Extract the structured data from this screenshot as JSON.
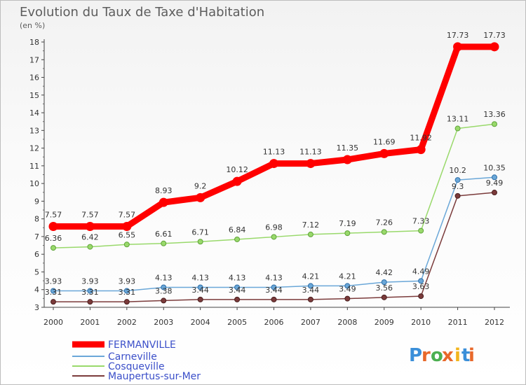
{
  "chart_data": {
    "type": "line",
    "title": "Evolution du Taux de Taxe d'Habitation",
    "ylabel": "(en %)",
    "xlabel": "",
    "x": [
      "2000",
      "2001",
      "2002",
      "2003",
      "2004",
      "2005",
      "2006",
      "2007",
      "2008",
      "2009",
      "2010",
      "2011",
      "2012"
    ],
    "ylim": [
      3,
      18
    ],
    "yticks": [
      3,
      4,
      5,
      6,
      7,
      8,
      9,
      10,
      11,
      12,
      13,
      14,
      15,
      16,
      17,
      18
    ],
    "grid": false,
    "legend_position": "bottom-left",
    "series": [
      {
        "name": "FERMANVILLE",
        "color": "#ff0000",
        "values": [
          7.57,
          7.57,
          7.57,
          8.93,
          9.2,
          10.12,
          11.13,
          11.13,
          11.35,
          11.69,
          11.92,
          17.73,
          17.73
        ],
        "labels": [
          "7.57",
          "7.57",
          "7.57",
          "8.93",
          "9.2",
          "10.12",
          "11.13",
          "11.13",
          "11.35",
          "11.69",
          "11.92",
          "17.73",
          "17.73"
        ]
      },
      {
        "name": "Carneville",
        "color": "#6aa7d8",
        "values": [
          3.93,
          3.93,
          3.93,
          4.13,
          4.13,
          4.13,
          4.13,
          4.21,
          4.21,
          4.42,
          4.49,
          10.2,
          10.35
        ],
        "labels": [
          "3.93",
          "3.93",
          "3.93",
          "4.13",
          "4.13",
          "4.13",
          "4.13",
          "4.21",
          "4.21",
          "4.42",
          "4.49",
          "10.2",
          "10.35"
        ]
      },
      {
        "name": "Cosqueville",
        "color": "#99d96b",
        "values": [
          6.36,
          6.42,
          6.55,
          6.61,
          6.71,
          6.84,
          6.98,
          7.12,
          7.19,
          7.26,
          7.33,
          13.11,
          13.36
        ],
        "labels": [
          "6.36",
          "6.42",
          "6.55",
          "6.61",
          "6.71",
          "6.84",
          "6.98",
          "7.12",
          "7.19",
          "7.26",
          "7.33",
          "13.11",
          "13.36"
        ]
      },
      {
        "name": "Maupertus-sur-Mer",
        "color": "#7b3b3b",
        "values": [
          3.31,
          3.31,
          3.31,
          3.38,
          3.44,
          3.44,
          3.44,
          3.44,
          3.49,
          3.56,
          3.63,
          9.3,
          9.49
        ],
        "labels": [
          "3.31",
          "3.31",
          "3.31",
          "3.38",
          "3.44",
          "3.44",
          "3.44",
          "3.44",
          "3.49",
          "3.56",
          "3.63",
          "9.3",
          "9.49"
        ]
      }
    ]
  },
  "logo": {
    "text": "Proxiti",
    "colors": [
      "#3a8fd9",
      "#e8682a",
      "#4caf50",
      "#e8682a",
      "#f2b51d",
      "#3a8fd9",
      "#e8682a"
    ]
  }
}
